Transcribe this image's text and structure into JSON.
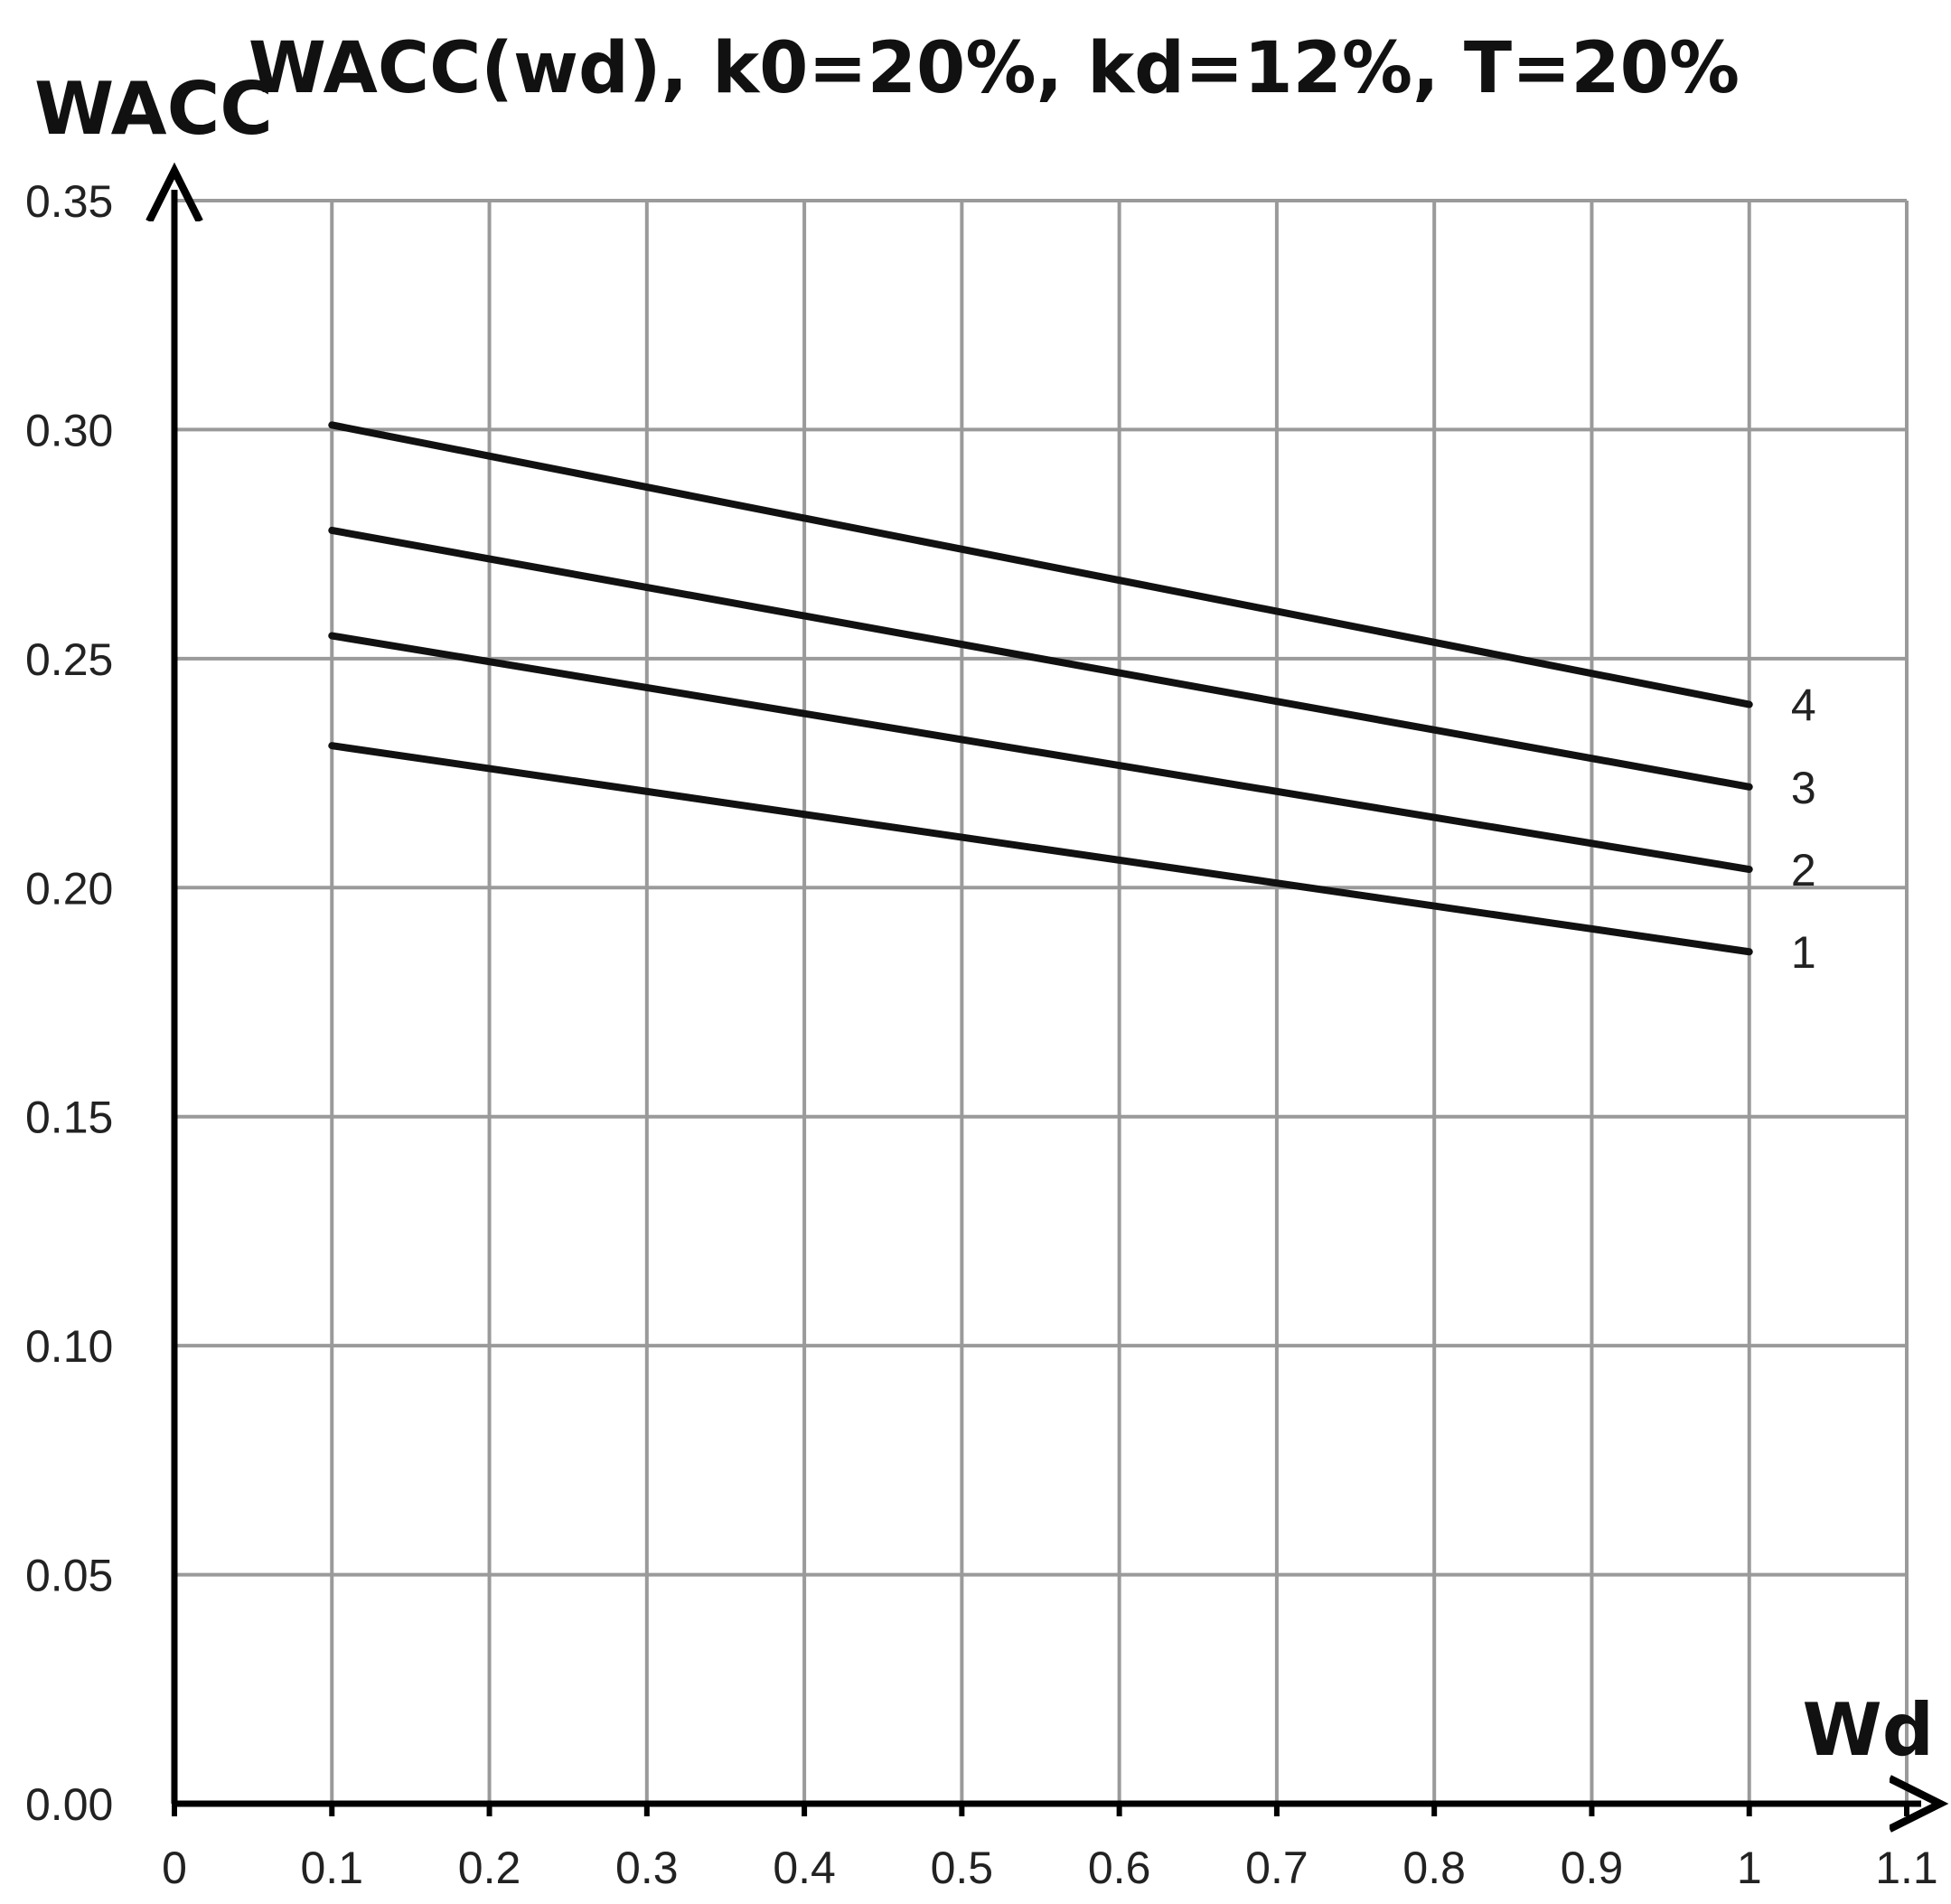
{
  "chart_data": {
    "type": "line",
    "title": "WACC(wd), k0=20%, kd=12%, T=20%",
    "xlabel": "Wd",
    "ylabel": "WACC",
    "xlim": [
      0,
      1.1
    ],
    "ylim": [
      0,
      0.35
    ],
    "grid": true,
    "x_ticks": [
      "0",
      "0.1",
      "0.2",
      "0.3",
      "0.4",
      "0.5",
      "0.6",
      "0.7",
      "0.8",
      "0.9",
      "1",
      "1.1"
    ],
    "y_ticks": [
      "0.00",
      "0.05",
      "0.10",
      "0.15",
      "0.20",
      "0.25",
      "0.30",
      "0.35"
    ],
    "x": [
      0.1,
      1.0
    ],
    "series": [
      {
        "name": "1",
        "values": [
          0.231,
          0.186
        ]
      },
      {
        "name": "2",
        "values": [
          0.255,
          0.204
        ]
      },
      {
        "name": "3",
        "values": [
          0.278,
          0.222
        ]
      },
      {
        "name": "4",
        "values": [
          0.301,
          0.24
        ]
      }
    ]
  }
}
